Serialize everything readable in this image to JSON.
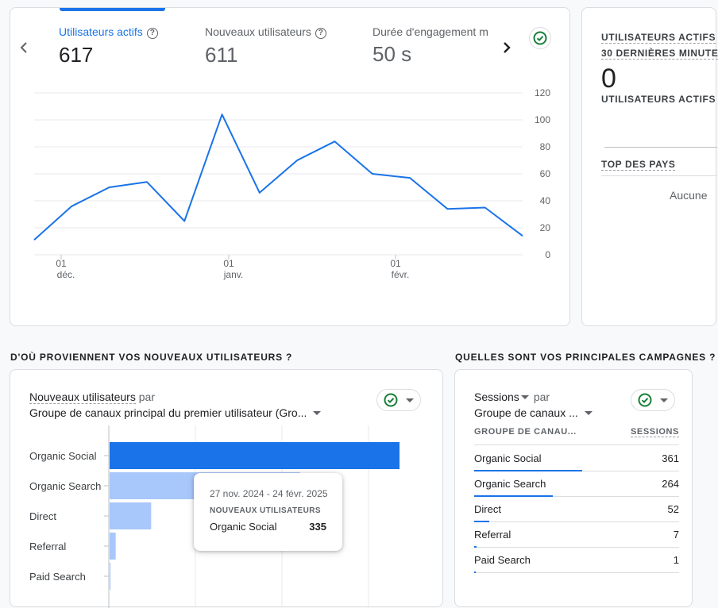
{
  "overview": {
    "metrics": [
      {
        "label": "Utilisateurs actifs",
        "value": "617"
      },
      {
        "label": "Nouveaux utilisateurs",
        "value": "611"
      },
      {
        "label": "Durée d'engagement m",
        "value": "50 s"
      }
    ],
    "icons": {
      "prev": "chevron-left-icon",
      "next": "chevron-right-icon",
      "status": "check-circle-icon"
    },
    "colors": {
      "accent": "#1a73e8",
      "ok": "#188038"
    }
  },
  "chart_data": {
    "type": "line",
    "series": [
      {
        "values": [
          11,
          36,
          50,
          54,
          25,
          104,
          46,
          70,
          84,
          60,
          57,
          34,
          35,
          14
        ]
      }
    ],
    "ylim": [
      0,
      120
    ],
    "yticks": [
      "0",
      "20",
      "40",
      "60",
      "80",
      "100",
      "120"
    ],
    "xticks": [
      {
        "day": "01",
        "month": "déc."
      },
      {
        "day": "01",
        "month": "janv."
      },
      {
        "day": "01",
        "month": "févr."
      }
    ],
    "grid": true
  },
  "realtime": {
    "title_line1": "UTILISATEURS ACTIFS",
    "title_line2": "30 DERNIÈRES MINUTE",
    "value": "0",
    "subtitle": "UTILISATEURS ACTIFS",
    "countries_title": "TOP DES PAYS",
    "empty_text": "Aucune"
  },
  "acquisition": {
    "section_title": "D'OÙ PROVIENNENT VOS NOUVEAUX UTILISATEURS ?",
    "metric_select": "Nouveaux utilisateurs",
    "par": "par",
    "dimension_select": "Groupe de canaux principal du premier utilisateur (Gro...",
    "bars": [
      {
        "label": "Organic Social",
        "value": 335
      },
      {
        "label": "Organic Search",
        "value": 220
      },
      {
        "label": "Direct",
        "value": 48
      },
      {
        "label": "Referral",
        "value": 7
      },
      {
        "label": "Paid Search",
        "value": 1
      }
    ],
    "tooltip": {
      "date_range": "27 nov. 2024 - 24 févr. 2025",
      "metric": "NOUVEAUX UTILISATEURS",
      "label": "Organic Social",
      "value": "335"
    }
  },
  "campaigns": {
    "section_title": "QUELLES SONT VOS PRINCIPALES CAMPAGNES ?",
    "metric_select": "Sessions",
    "par": "par",
    "dimension_select": "Groupe de canaux ...",
    "col_dimension": "GROUPE DE CANAU...",
    "col_metric": "SESSIONS",
    "rows": [
      {
        "label": "Organic Social",
        "value": "361",
        "share": 1.0
      },
      {
        "label": "Organic Search",
        "value": "264",
        "share": 0.73
      },
      {
        "label": "Direct",
        "value": "52",
        "share": 0.14
      },
      {
        "label": "Referral",
        "value": "7",
        "share": 0.02
      },
      {
        "label": "Paid Search",
        "value": "1",
        "share": 0.005
      }
    ]
  }
}
